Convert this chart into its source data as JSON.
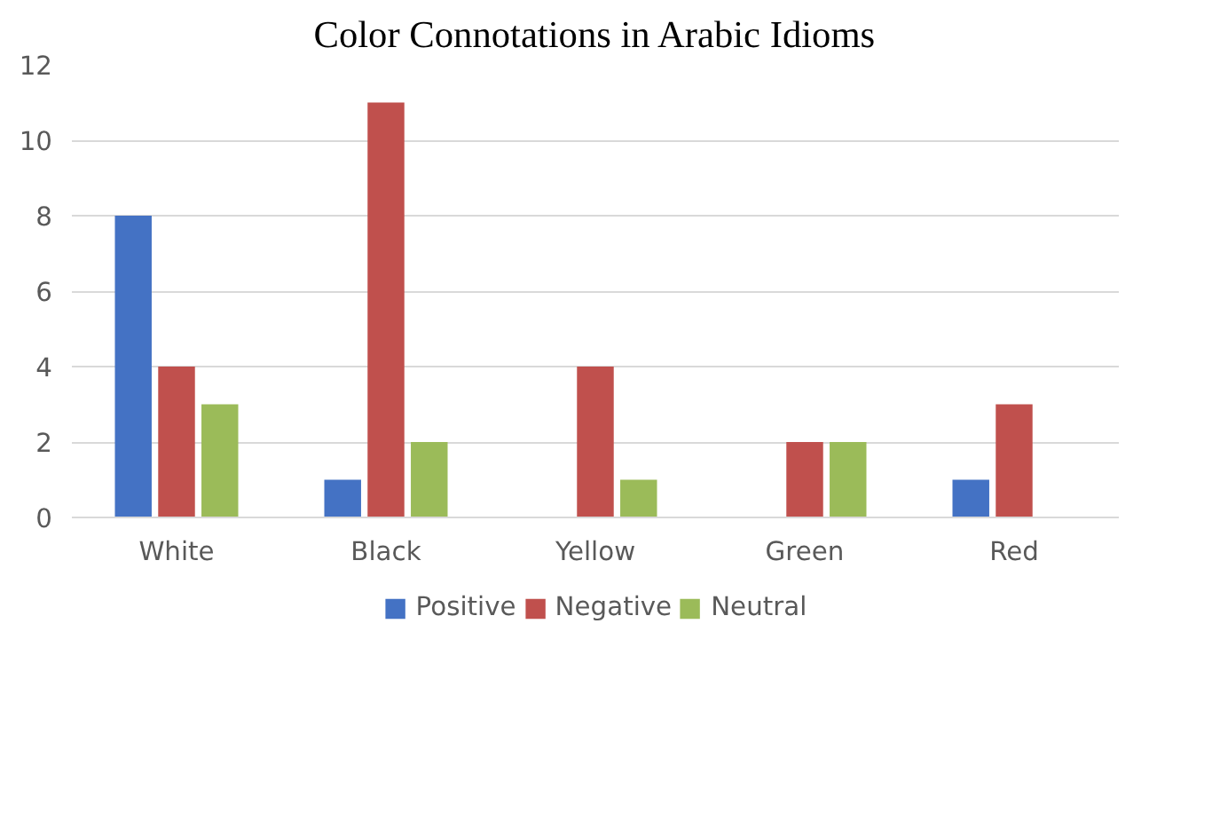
{
  "chart_data": {
    "type": "bar",
    "title": "Color Connotations in Arabic Idioms",
    "categories": [
      "White",
      "Black",
      "Yellow",
      "Green",
      "Red"
    ],
    "series": [
      {
        "name": "Positive",
        "color": "#4472c4",
        "values": [
          8,
          1,
          0,
          0,
          1
        ]
      },
      {
        "name": "Negative",
        "color": "#c0504d",
        "values": [
          4,
          11,
          4,
          2,
          3
        ]
      },
      {
        "name": "Neutral",
        "color": "#9bbb59",
        "values": [
          3,
          2,
          1,
          2,
          0
        ]
      }
    ],
    "ylim": [
      0,
      12
    ],
    "yticks": [
      0,
      2,
      4,
      6,
      8,
      10,
      12
    ],
    "grid": "y",
    "legend": "bottom"
  }
}
